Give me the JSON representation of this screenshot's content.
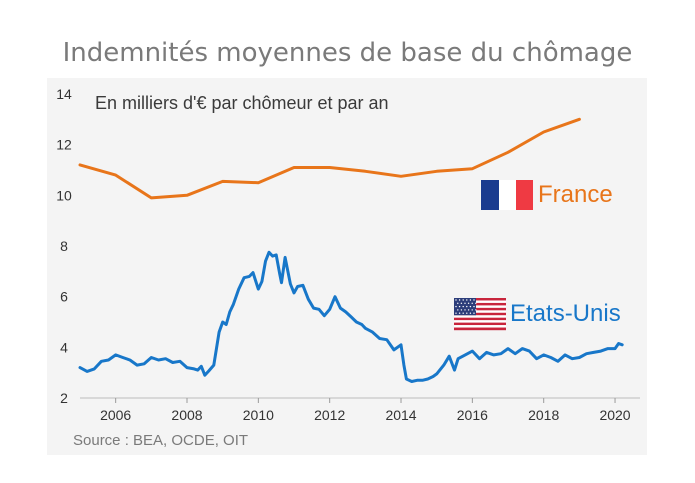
{
  "chart_data": {
    "type": "line",
    "title": "Indemnités moyennes de base du chômage",
    "subtitle": "En milliers d'€ par chômeur et par an",
    "source": "Source : BEA, OCDE, OIT",
    "xlabel": "",
    "ylabel": "",
    "xlim": [
      2005,
      2020.7
    ],
    "ylim": [
      2,
      14
    ],
    "x_ticks": [
      2006,
      2008,
      2010,
      2012,
      2014,
      2016,
      2018,
      2020
    ],
    "y_ticks": [
      2,
      4,
      6,
      8,
      10,
      12,
      14
    ],
    "grid": false,
    "series": [
      {
        "name": "France",
        "color": "#e8751a",
        "icon": "france-flag-icon",
        "x": [
          2005,
          2006,
          2007,
          2008,
          2009,
          2010,
          2011,
          2012,
          2013,
          2014,
          2015,
          2016,
          2017,
          2018,
          2019
        ],
        "values": [
          11.2,
          10.8,
          9.9,
          10.0,
          10.55,
          10.5,
          11.1,
          11.1,
          10.95,
          10.75,
          10.95,
          11.05,
          11.7,
          12.5,
          13.0
        ]
      },
      {
        "name": "Etats-Unis",
        "color": "#1877c9",
        "icon": "usa-flag-icon",
        "x": [
          2005.0,
          2005.2,
          2005.4,
          2005.6,
          2005.8,
          2006.0,
          2006.2,
          2006.4,
          2006.6,
          2006.8,
          2007.0,
          2007.2,
          2007.4,
          2007.6,
          2007.8,
          2008.0,
          2008.2,
          2008.3,
          2008.4,
          2008.5,
          2008.6,
          2008.75,
          2008.9,
          2009.0,
          2009.1,
          2009.2,
          2009.3,
          2009.45,
          2009.6,
          2009.75,
          2009.85,
          2010.0,
          2010.1,
          2010.2,
          2010.3,
          2010.4,
          2010.5,
          2010.6,
          2010.65,
          2010.75,
          2010.9,
          2011.0,
          2011.1,
          2011.25,
          2011.4,
          2011.55,
          2011.7,
          2011.85,
          2012.0,
          2012.15,
          2012.3,
          2012.45,
          2012.6,
          2012.75,
          2012.9,
          2013.0,
          2013.2,
          2013.4,
          2013.6,
          2013.8,
          2014.0,
          2014.08,
          2014.15,
          2014.3,
          2014.45,
          2014.6,
          2014.75,
          2014.9,
          2015.0,
          2015.2,
          2015.35,
          2015.5,
          2015.6,
          2015.8,
          2016.0,
          2016.2,
          2016.4,
          2016.6,
          2016.8,
          2017.0,
          2017.2,
          2017.4,
          2017.6,
          2017.8,
          2018.0,
          2018.2,
          2018.4,
          2018.6,
          2018.8,
          2019.0,
          2019.2,
          2019.4,
          2019.6,
          2019.8,
          2020.0,
          2020.1,
          2020.2
        ],
        "values": [
          3.2,
          3.05,
          3.15,
          3.45,
          3.5,
          3.7,
          3.6,
          3.5,
          3.3,
          3.35,
          3.6,
          3.5,
          3.55,
          3.4,
          3.45,
          3.2,
          3.15,
          3.1,
          3.25,
          2.9,
          3.05,
          3.3,
          4.6,
          5.0,
          4.9,
          5.4,
          5.7,
          6.3,
          6.75,
          6.8,
          6.95,
          6.3,
          6.6,
          7.4,
          7.75,
          7.6,
          7.65,
          6.9,
          6.55,
          7.55,
          6.5,
          6.15,
          6.4,
          6.45,
          5.9,
          5.55,
          5.5,
          5.25,
          5.5,
          6.0,
          5.55,
          5.4,
          5.2,
          5.0,
          4.9,
          4.75,
          4.6,
          4.35,
          4.3,
          3.9,
          4.1,
          3.3,
          2.75,
          2.65,
          2.7,
          2.7,
          2.75,
          2.85,
          2.95,
          3.3,
          3.65,
          3.1,
          3.55,
          3.7,
          3.85,
          3.55,
          3.8,
          3.7,
          3.75,
          3.95,
          3.75,
          3.95,
          3.85,
          3.55,
          3.7,
          3.6,
          3.45,
          3.7,
          3.55,
          3.6,
          3.75,
          3.8,
          3.85,
          3.95,
          3.95,
          4.15,
          4.1
        ]
      }
    ]
  }
}
